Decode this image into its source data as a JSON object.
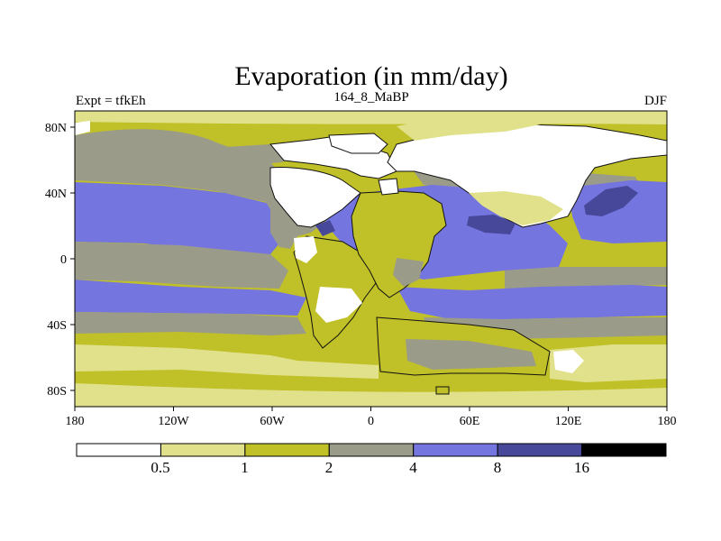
{
  "title": "Evaporation (in mm/day)",
  "subtitle_left": "Expt = tfkEh",
  "subtitle_center": "164_8_MaBP",
  "subtitle_right": "DJF",
  "x_ticks": [
    "180",
    "120W",
    "60W",
    "0",
    "60E",
    "120E",
    "180"
  ],
  "y_ticks": [
    "80N",
    "40N",
    "0",
    "40S",
    "80S"
  ],
  "colorbar": {
    "levels": [
      "0.5",
      "1",
      "2",
      "4",
      "8",
      "16"
    ],
    "colors": [
      "#ffffff",
      "#e1e18c",
      "#c0c028",
      "#9b9b8a",
      "#7575e0",
      "#48489a",
      "#000000"
    ]
  }
}
